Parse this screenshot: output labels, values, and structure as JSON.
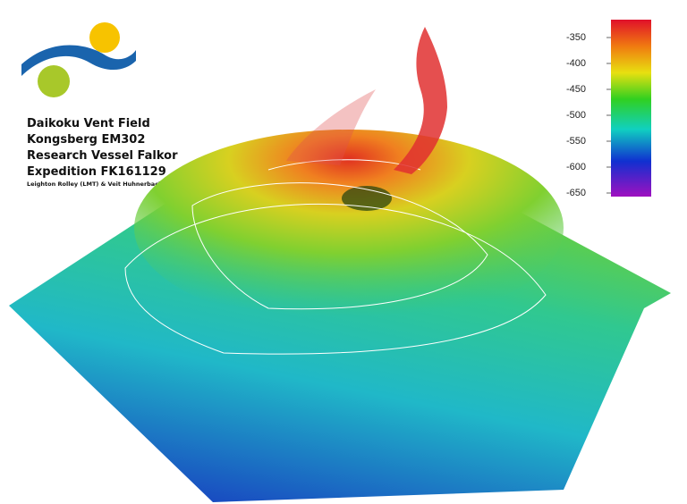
{
  "header": {
    "lines": [
      "Daikoku Vent Field",
      "Kongsberg EM302",
      "Research Vessel Falkor",
      "Expedition FK161129"
    ],
    "credit": "Leighton Rolley (LMT) &  Veit Huhnerbach (MT)"
  },
  "colorbar": {
    "ticks": [
      -350,
      -400,
      -450,
      -500,
      -550,
      -600,
      -650
    ]
  }
}
